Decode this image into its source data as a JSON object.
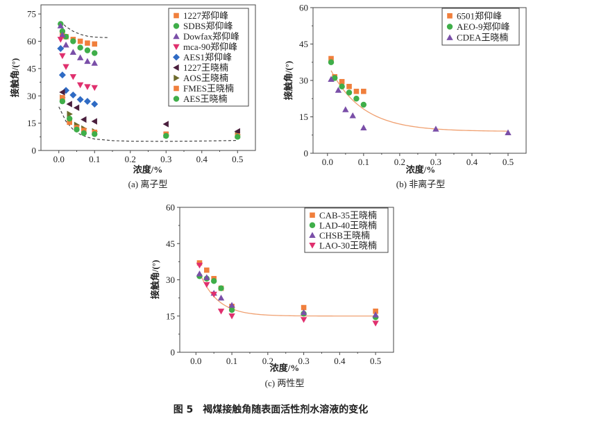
{
  "figure_caption": "图 5　褐煤接触角随表面活性剂水溶液的变化",
  "chart_data": [
    {
      "type": "scatter",
      "caption": "(a) 离子型",
      "xlabel": "浓度/%",
      "ylabel": "接触角/(°)",
      "xlim": [
        -0.05,
        0.55
      ],
      "ylim": [
        0,
        80
      ],
      "xticks": [
        "0.0",
        "0.1",
        "0.2",
        "0.3",
        "0.4",
        "0.5"
      ],
      "yticks": [
        "0",
        "15",
        "30",
        "45",
        "60",
        "75"
      ],
      "legend": "top-right",
      "series": [
        {
          "name": "1227郑仰峰",
          "marker": "square",
          "color": "#f07f3c",
          "x": [
            0.01,
            0.02,
            0.04,
            0.06,
            0.08,
            0.1
          ],
          "y": [
            64,
            62.5,
            61,
            60,
            59,
            58.5
          ]
        },
        {
          "name": "SDBS郑仰峰",
          "marker": "circle",
          "color": "#3fae49",
          "x": [
            0.005,
            0.01,
            0.02,
            0.04,
            0.06,
            0.08,
            0.1
          ],
          "y": [
            69.5,
            65.5,
            62.5,
            60,
            56.5,
            55,
            53.5
          ]
        },
        {
          "name": "Dowfax郑仰峰",
          "marker": "triangle-up",
          "color": "#7a4fa8",
          "x": [
            0.005,
            0.01,
            0.02,
            0.04,
            0.06,
            0.08,
            0.1
          ],
          "y": [
            68.5,
            63.5,
            58,
            54,
            51,
            49,
            48
          ]
        },
        {
          "name": "mca-90郑仰峰",
          "marker": "triangle-down",
          "color": "#e0306e",
          "x": [
            0.005,
            0.01,
            0.02,
            0.04,
            0.06,
            0.08,
            0.1
          ],
          "y": [
            61,
            52,
            46,
            40.5,
            36,
            35,
            34.5
          ]
        },
        {
          "name": "AES1郑仰峰",
          "marker": "diamond",
          "color": "#2f6bc4",
          "x": [
            0.005,
            0.01,
            0.02,
            0.04,
            0.06,
            0.08,
            0.1
          ],
          "y": [
            56,
            41.5,
            33,
            30.5,
            28,
            27,
            25.5
          ]
        },
        {
          "name": "1227王晓楠",
          "marker": "triangle-left",
          "color": "#4a1f3d",
          "x": [
            0.01,
            0.03,
            0.05,
            0.07,
            0.1,
            0.3,
            0.5
          ],
          "y": [
            32,
            25.5,
            23.5,
            17,
            16,
            14.5,
            10.5
          ]
        },
        {
          "name": "AOS王晓楠",
          "marker": "triangle-right",
          "color": "#6d6a2c",
          "x": [
            0.01,
            0.03,
            0.05,
            0.07,
            0.1,
            0.3,
            0.5
          ],
          "y": [
            29,
            20,
            14,
            12,
            10.5,
            8.5,
            8.5
          ]
        },
        {
          "name": "FMES王晓楠",
          "marker": "square",
          "color": "#f07f3c",
          "x": [
            0.01,
            0.03,
            0.05,
            0.07,
            0.1,
            0.3,
            0.5
          ],
          "y": [
            29,
            15.5,
            12.5,
            11,
            10,
            9,
            8
          ]
        },
        {
          "name": "AES王晓楠",
          "marker": "circle",
          "color": "#3fae49",
          "x": [
            0.01,
            0.03,
            0.05,
            0.07,
            0.1,
            0.3,
            0.5
          ],
          "y": [
            27,
            17.5,
            11.5,
            9.5,
            9,
            8,
            7.5
          ]
        }
      ],
      "dashed_guides": [
        {
          "x": [
            0.005,
            0.02,
            0.04,
            0.06,
            0.08,
            0.1,
            0.12,
            0.14
          ],
          "y": [
            71,
            68,
            65.5,
            63.8,
            62.8,
            62.3,
            62.1,
            62
          ]
        },
        {
          "x": [
            0,
            0.02,
            0.04,
            0.06,
            0.08,
            0.1,
            0.15,
            0.2,
            0.3,
            0.4,
            0.5
          ],
          "y": [
            24,
            16,
            11.5,
            8.8,
            7.3,
            6.3,
            5.4,
            5.1,
            5,
            5.2,
            5.5
          ]
        }
      ]
    },
    {
      "type": "scatter",
      "caption": "(b) 非离子型",
      "xlabel": "浓度/%",
      "ylabel": "接触角/(°)",
      "xlim": [
        -0.04,
        0.55
      ],
      "ylim": [
        0,
        60
      ],
      "xticks": [
        "0.0",
        "0.1",
        "0.2",
        "0.3",
        "0.4",
        "0.5"
      ],
      "yticks": [
        "0",
        "15",
        "30",
        "45",
        "60"
      ],
      "legend": "top-right",
      "series": [
        {
          "name": "6501郑仰峰",
          "marker": "square",
          "color": "#f07f3c",
          "x": [
            0.01,
            0.02,
            0.04,
            0.06,
            0.08,
            0.1
          ],
          "y": [
            39,
            31.5,
            29.5,
            27.5,
            25.5,
            25.5
          ]
        },
        {
          "name": "AEO-9郑仰峰",
          "marker": "circle",
          "color": "#3fae49",
          "x": [
            0.01,
            0.02,
            0.04,
            0.06,
            0.08,
            0.1
          ],
          "y": [
            37.5,
            31,
            27.5,
            25,
            22.5,
            20
          ]
        },
        {
          "name": "CDEA王晓楠",
          "marker": "triangle-up",
          "color": "#7a4fa8",
          "x": [
            0.01,
            0.03,
            0.05,
            0.07,
            0.1,
            0.3,
            0.5
          ],
          "y": [
            30.5,
            26,
            18,
            15.5,
            10.5,
            10,
            8.5
          ]
        }
      ],
      "fit": {
        "color": "#f0a070",
        "plateau": 9,
        "amplitude": 28,
        "decay": 0.09,
        "x_range": [
          0.01,
          0.5
        ]
      }
    },
    {
      "type": "scatter",
      "caption": "(c) 两性型",
      "xlabel": "浓度/%",
      "ylabel": "接触角/(°)",
      "xlim": [
        -0.045,
        0.55
      ],
      "ylim": [
        0,
        60
      ],
      "xticks": [
        "0.0",
        "0.1",
        "0.2",
        "0.3",
        "0.4",
        "0.5"
      ],
      "yticks": [
        "0",
        "15",
        "30",
        "45",
        "60"
      ],
      "legend": "top-right",
      "series": [
        {
          "name": "CAB-35王晓楠",
          "marker": "square",
          "color": "#f07f3c",
          "x": [
            0.01,
            0.03,
            0.05,
            0.07,
            0.1,
            0.3,
            0.5
          ],
          "y": [
            37,
            34,
            30.5,
            26.5,
            19,
            18.5,
            17
          ]
        },
        {
          "name": "LAD-40王晓楠",
          "marker": "circle",
          "color": "#3fae49",
          "x": [
            0.01,
            0.03,
            0.05,
            0.07,
            0.1,
            0.3,
            0.5
          ],
          "y": [
            31.5,
            30.5,
            29.5,
            26.5,
            17.5,
            16,
            14.5
          ]
        },
        {
          "name": "CHSB王晓楠",
          "marker": "triangle-up",
          "color": "#7a4fa8",
          "x": [
            0.01,
            0.03,
            0.05,
            0.07,
            0.1,
            0.3,
            0.5
          ],
          "y": [
            32.5,
            31,
            24.5,
            22.5,
            19.5,
            16.5,
            15.5
          ]
        },
        {
          "name": "LAO-30王晓楠",
          "marker": "triangle-down",
          "color": "#e0306e",
          "x": [
            0.01,
            0.03,
            0.05,
            0.07,
            0.1,
            0.3,
            0.5
          ],
          "y": [
            36,
            28,
            24,
            17,
            15,
            13.5,
            12
          ]
        }
      ],
      "fit": {
        "color": "#f0a070",
        "plateau": 15,
        "amplitude": 22,
        "decay": 0.05,
        "x_range": [
          0.01,
          0.5
        ]
      }
    }
  ]
}
